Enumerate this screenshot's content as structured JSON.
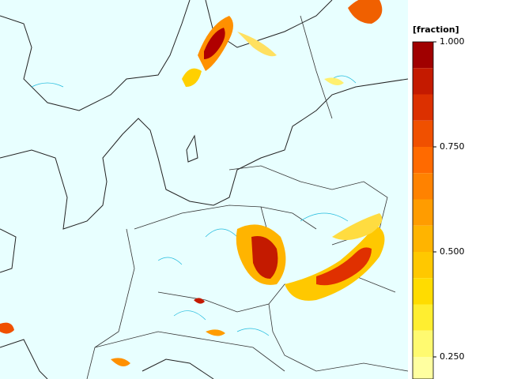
{
  "map": {
    "type": "colorbar-map",
    "colorbar": {
      "title": "[fraction]",
      "ticks": [
        {
          "value": 1,
          "label": "1.000"
        },
        {
          "value": 0.75,
          "label": "0.750"
        },
        {
          "value": 0.5,
          "label": "0.500"
        },
        {
          "value": 0.25,
          "label": "0.250"
        }
      ],
      "bands": [
        {
          "from": 0.9375,
          "to": 1,
          "color": "#a00000"
        },
        {
          "from": 0.875,
          "to": 0.9375,
          "color": "#c41a00"
        },
        {
          "from": 0.8125,
          "to": 0.875,
          "color": "#dc3000"
        },
        {
          "from": 0.75,
          "to": 0.8125,
          "color": "#f05000"
        },
        {
          "from": 0.6875,
          "to": 0.75,
          "color": "#ff6a00"
        },
        {
          "from": 0.625,
          "to": 0.6875,
          "color": "#ff8200"
        },
        {
          "from": 0.5625,
          "to": 0.625,
          "color": "#ff9c00"
        },
        {
          "from": 0.5,
          "to": 0.5625,
          "color": "#ffb400"
        },
        {
          "from": 0.4375,
          "to": 0.5,
          "color": "#ffc800"
        },
        {
          "from": 0.375,
          "to": 0.4375,
          "color": "#ffdc00"
        },
        {
          "from": 0.3125,
          "to": 0.375,
          "color": "#ffee30"
        },
        {
          "from": 0.25,
          "to": 0.3125,
          "color": "#fffa70"
        },
        {
          "from": 0.1875,
          "to": 0.25,
          "color": "#ffffa0"
        }
      ]
    }
  }
}
